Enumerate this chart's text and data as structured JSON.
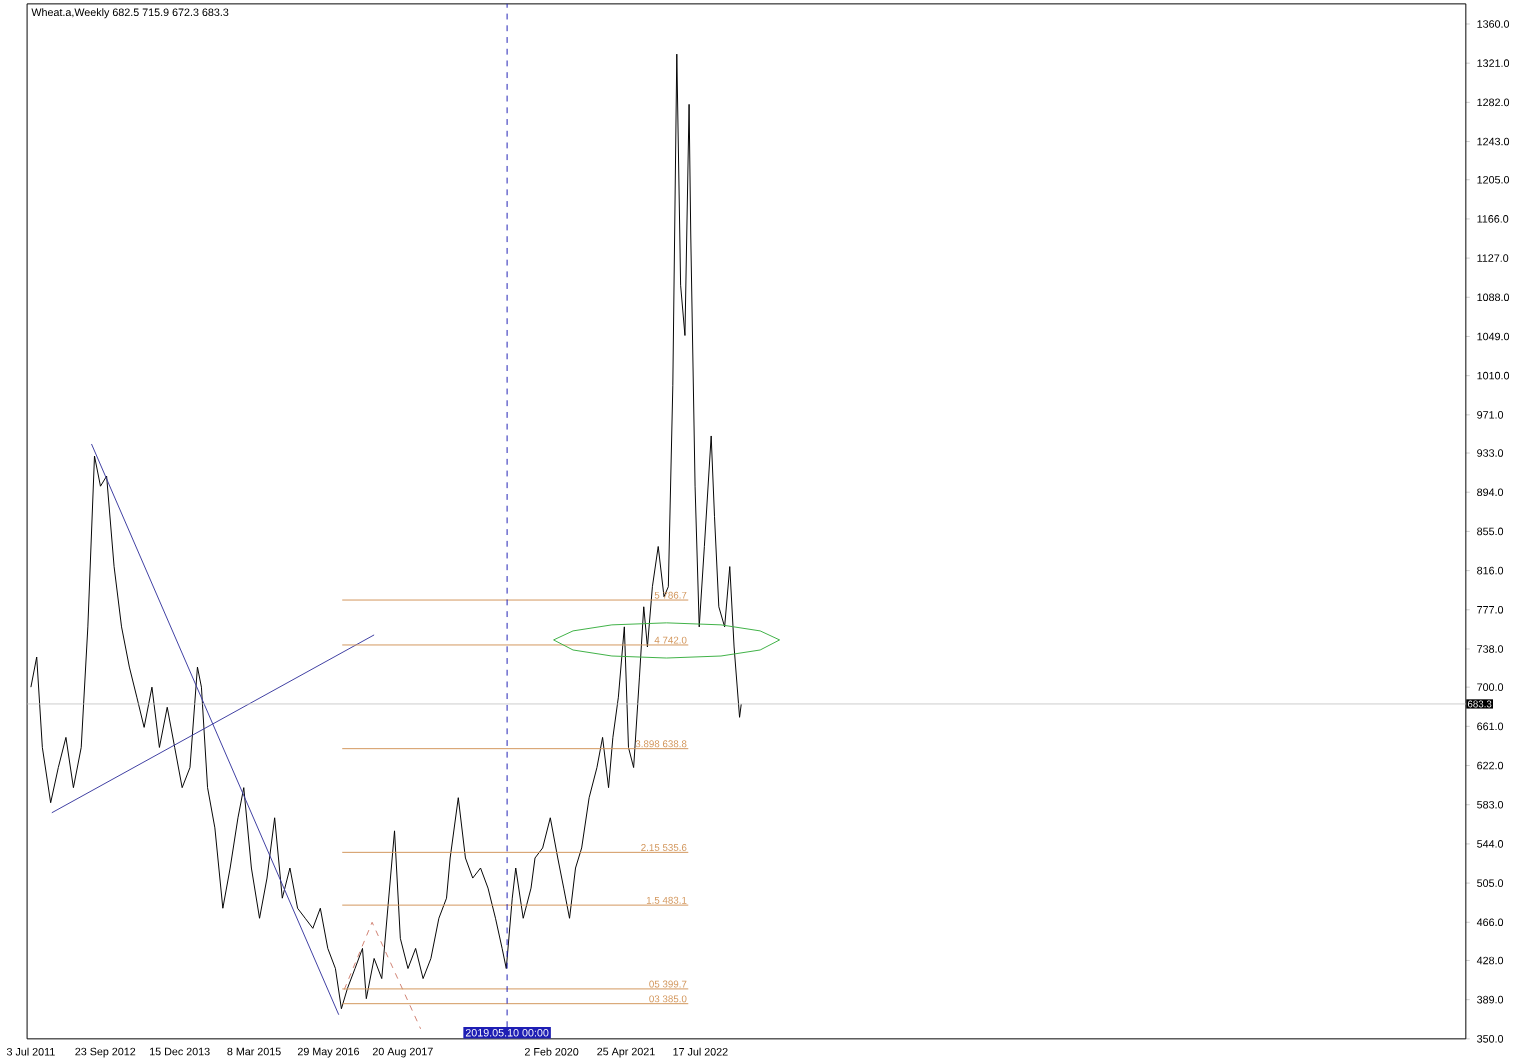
{
  "chart_data": {
    "type": "line",
    "title": "Wheat.a,Weekly  682.5 715.9 672.3 683.3",
    "xlim": [
      "2011-06-10",
      "2035-03-01"
    ],
    "ylim": [
      350,
      1380
    ],
    "xticks": [
      {
        "value": "2011-07-03",
        "label": "3 Jul 2011"
      },
      {
        "value": "2012-09-23",
        "label": "23 Sep 2012"
      },
      {
        "value": "2013-12-15",
        "label": "15 Dec 2013"
      },
      {
        "value": "2015-03-08",
        "label": "8 Mar 2015"
      },
      {
        "value": "2016-05-29",
        "label": "29 May 2016"
      },
      {
        "value": "2017-08-20",
        "label": "20 Aug 2017"
      },
      {
        "value": "2020-02-02",
        "label": "2 Feb 2020"
      },
      {
        "value": "2021-04-25",
        "label": "25 Apr 2021"
      },
      {
        "value": "2022-07-17",
        "label": "17 Jul 2022"
      }
    ],
    "yticks": [
      {
        "value": 350,
        "label": "350.0"
      },
      {
        "value": 389,
        "label": "389.0"
      },
      {
        "value": 428,
        "label": "428.0"
      },
      {
        "value": 466,
        "label": "466.0"
      },
      {
        "value": 505,
        "label": "505.0"
      },
      {
        "value": 544,
        "label": "544.0"
      },
      {
        "value": 583,
        "label": "583.0"
      },
      {
        "value": 622,
        "label": "622.0"
      },
      {
        "value": 661,
        "label": "661.0"
      },
      {
        "value": 700,
        "label": "700.0"
      },
      {
        "value": 738,
        "label": "738.0"
      },
      {
        "value": 777,
        "label": "777.0"
      },
      {
        "value": 816,
        "label": "816.0"
      },
      {
        "value": 855,
        "label": "855.0"
      },
      {
        "value": 894,
        "label": "894.0"
      },
      {
        "value": 933,
        "label": "933.0"
      },
      {
        "value": 971,
        "label": "971.0"
      },
      {
        "value": 1010,
        "label": "1010.0"
      },
      {
        "value": 1049,
        "label": "1049.0"
      },
      {
        "value": 1088,
        "label": "1088.0"
      },
      {
        "value": 1127,
        "label": "1127.0"
      },
      {
        "value": 1166,
        "label": "1166.0"
      },
      {
        "value": 1205,
        "label": "1205.0"
      },
      {
        "value": 1243,
        "label": "1243.0"
      },
      {
        "value": 1282,
        "label": "1282.0"
      },
      {
        "value": 1321,
        "label": "1321.0"
      },
      {
        "value": 1360,
        "label": "1360.0"
      }
    ],
    "ref_lines": [
      {
        "axis": "x",
        "value": "2019-05-10",
        "label": "2019.05.10 00:00",
        "color": "#1e1eb4",
        "line_style": "dashed"
      },
      {
        "axis": "y",
        "value": 683.3,
        "label": "683.3",
        "color": "#c0c0c0"
      }
    ],
    "series": [
      {
        "type": "line",
        "color": "#000000",
        "x": [
          "2011-07-03",
          "2011-08-07",
          "2011-09-10",
          "2011-10-30",
          "2011-12-15",
          "2012-01-30",
          "2012-03-15",
          "2012-05-01",
          "2012-06-10",
          "2012-07-20",
          "2012-08-25",
          "2012-10-01",
          "2012-11-15",
          "2012-12-30",
          "2013-02-15",
          "2013-04-01",
          "2013-05-15",
          "2013-07-01",
          "2013-08-15",
          "2013-10-01",
          "2013-11-15",
          "2013-12-30",
          "2014-02-15",
          "2014-04-01",
          "2014-04-25",
          "2014-06-01",
          "2014-07-15",
          "2014-09-01",
          "2014-10-15",
          "2014-12-01",
          "2015-01-05",
          "2015-02-20",
          "2015-04-10",
          "2015-05-25",
          "2015-07-10",
          "2015-08-25",
          "2015-10-10",
          "2015-11-25",
          "2016-01-10",
          "2016-02-25",
          "2016-04-10",
          "2016-05-25",
          "2016-07-10",
          "2016-08-15",
          "2016-09-20",
          "2016-11-05",
          "2016-12-20",
          "2017-01-12",
          "2017-02-28",
          "2017-04-15",
          "2017-07-01",
          "2017-08-05",
          "2017-09-20",
          "2017-11-05",
          "2017-12-20",
          "2018-02-05",
          "2018-03-25",
          "2018-05-10",
          "2018-06-01",
          "2018-07-20",
          "2018-09-01",
          "2018-10-15",
          "2018-12-01",
          "2019-01-15",
          "2019-03-01",
          "2019-04-10",
          "2019-05-05",
          "2019-06-10",
          "2019-07-01",
          "2019-08-15",
          "2019-10-01",
          "2019-10-25",
          "2019-12-10",
          "2020-01-25",
          "2020-03-10",
          "2020-04-15",
          "2020-05-20",
          "2020-06-25",
          "2020-08-01",
          "2020-09-15",
          "2020-11-01",
          "2020-12-05",
          "2021-01-10",
          "2021-02-05",
          "2021-03-10",
          "2021-04-15",
          "2021-05-10",
          "2021-06-10",
          "2021-07-15",
          "2021-08-10",
          "2021-09-01",
          "2021-10-01",
          "2021-11-05",
          "2021-12-10",
          "2022-01-05",
          "2022-02-01",
          "2022-02-25",
          "2022-03-20",
          "2022-04-15",
          "2022-05-10",
          "2022-05-20",
          "2022-06-15",
          "2022-07-10",
          "2022-08-10",
          "2022-09-20",
          "2022-10-10",
          "2022-11-05",
          "2022-12-10",
          "2023-01-10",
          "2023-02-05",
          "2023-03-10",
          "2023-03-20"
        ],
        "values": [
          700,
          730,
          640,
          585,
          620,
          650,
          600,
          640,
          760,
          930,
          900,
          910,
          820,
          760,
          720,
          690,
          660,
          700,
          640,
          680,
          640,
          600,
          620,
          720,
          700,
          600,
          560,
          480,
          520,
          570,
          600,
          520,
          470,
          510,
          570,
          490,
          520,
          480,
          470,
          460,
          480,
          440,
          420,
          380,
          400,
          420,
          440,
          390,
          430,
          410,
          557,
          450,
          420,
          440,
          410,
          430,
          470,
          490,
          530,
          590,
          530,
          510,
          520,
          500,
          470,
          440,
          420,
          490,
          520,
          470,
          500,
          530,
          540,
          570,
          530,
          500,
          470,
          520,
          540,
          590,
          620,
          650,
          600,
          650,
          690,
          760,
          640,
          620,
          710,
          780,
          740,
          800,
          840,
          790,
          800,
          1000,
          1330,
          1100,
          1050,
          1280,
          1150,
          900,
          760,
          840,
          950,
          870,
          780,
          760,
          820,
          740,
          670,
          683
        ]
      },
      {
        "type": "line",
        "color": "#3c3ca0",
        "x": [
          "2011-11-06",
          "2017-02-28"
        ],
        "values": [
          575,
          752
        ]
      },
      {
        "type": "line",
        "color": "#3c3ca0",
        "x": [
          "2012-07-02",
          "2016-07-30"
        ],
        "values": [
          942,
          374
        ]
      },
      {
        "type": "line",
        "color": "#d08070",
        "line_style": "dashed",
        "x": [
          "2016-09-01",
          "2017-02-16",
          "2017-12-05"
        ],
        "values": [
          399,
          466,
          360
        ]
      },
      {
        "type": "line",
        "name": "5 786.7",
        "color": "#d2955a",
        "x": [
          "2016-08-20",
          "2022-05-05"
        ],
        "values": [
          786.7,
          786.7
        ]
      },
      {
        "type": "line",
        "name": "4 742.0",
        "color": "#d2955a",
        "x": [
          "2016-08-20",
          "2022-05-05"
        ],
        "values": [
          742.0,
          742.0
        ]
      },
      {
        "type": "line",
        "name": "3.898 638.8",
        "color": "#d2955a",
        "x": [
          "2016-08-20",
          "2022-05-05"
        ],
        "values": [
          638.8,
          638.8
        ]
      },
      {
        "type": "line",
        "name": "2.15 535.6",
        "color": "#d2955a",
        "x": [
          "2016-08-20",
          "2022-05-05"
        ],
        "values": [
          535.6,
          535.6
        ]
      },
      {
        "type": "line",
        "name": "1.5 483.1",
        "color": "#d2955a",
        "x": [
          "2016-08-20",
          "2022-05-05"
        ],
        "values": [
          483.1,
          483.1
        ]
      },
      {
        "type": "line",
        "name": "05 399.7",
        "color": "#d2955a",
        "x": [
          "2016-08-20",
          "2022-05-05"
        ],
        "values": [
          399.7,
          399.7
        ]
      },
      {
        "type": "line",
        "name": "03 385.0",
        "color": "#d2955a",
        "x": [
          "2016-08-20",
          "2022-05-05"
        ],
        "values": [
          385.0,
          385.0
        ]
      },
      {
        "color": "#3cb043",
        "x": [
          "2020-02-14",
          "2020-06-10",
          "2021-01-30",
          "2021-12-25",
          "2022-11-18",
          "2023-07-12",
          "2023-11-06"
        ],
        "values": [
          747,
          756,
          762,
          764,
          762,
          756,
          747
        ]
      },
      {
        "color": "#3cb043",
        "x": [
          "2020-02-14",
          "2020-06-10",
          "2021-01-30",
          "2021-12-25",
          "2022-11-18",
          "2023-07-12",
          "2023-11-06"
        ],
        "values": [
          747,
          737,
          731,
          729,
          731,
          737,
          747
        ]
      }
    ]
  }
}
